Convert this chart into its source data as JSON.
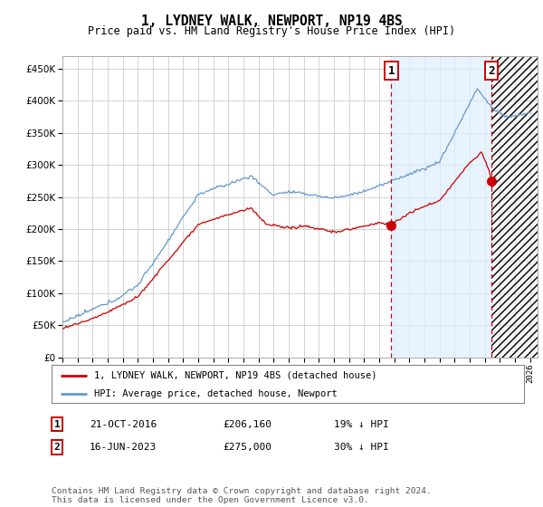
{
  "title": "1, LYDNEY WALK, NEWPORT, NP19 4BS",
  "subtitle": "Price paid vs. HM Land Registry's House Price Index (HPI)",
  "ylim": [
    0,
    470000
  ],
  "yticks": [
    0,
    50000,
    100000,
    150000,
    200000,
    250000,
    300000,
    350000,
    400000,
    450000
  ],
  "ytick_labels": [
    "£0",
    "£50K",
    "£100K",
    "£150K",
    "£200K",
    "£250K",
    "£300K",
    "£350K",
    "£400K",
    "£450K"
  ],
  "xlim_start": 1995.0,
  "xlim_end": 2026.5,
  "sale1_date": "21-OCT-2016",
  "sale1_price": 206160,
  "sale1_hpi_pct": "19% ↓ HPI",
  "sale1_year": 2016.8,
  "sale2_date": "16-JUN-2023",
  "sale2_price": 275000,
  "sale2_hpi_pct": "30% ↓ HPI",
  "sale2_year": 2023.45,
  "legend_line1": "1, LYDNEY WALK, NEWPORT, NP19 4BS (detached house)",
  "legend_line2": "HPI: Average price, detached house, Newport",
  "footer": "Contains HM Land Registry data © Crown copyright and database right 2024.\nThis data is licensed under the Open Government Licence v3.0.",
  "red_color": "#cc0000",
  "blue_color": "#6699cc",
  "fill_color": "#ddeeff",
  "bg_color": "#ffffff",
  "grid_color": "#cccccc"
}
